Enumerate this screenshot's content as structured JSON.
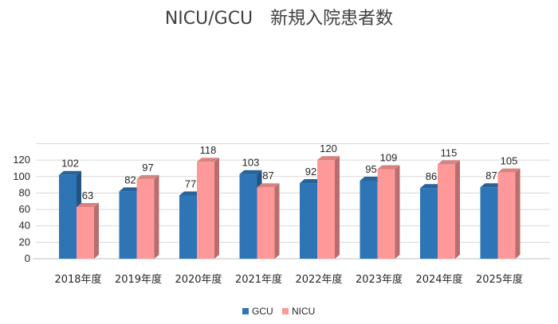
{
  "chart_data": {
    "type": "bar",
    "title": "NICU/GCU　新規入院患者数",
    "categories": [
      "2018年度",
      "2019年度",
      "2020年度",
      "2021年度",
      "2022年度",
      "2023年度",
      "2024年度",
      "2025年度"
    ],
    "series": [
      {
        "name": "GCU",
        "values": [
          102,
          82,
          77,
          103,
          92,
          95,
          86,
          87
        ],
        "color": "#2E75B6"
      },
      {
        "name": "NICU",
        "values": [
          63,
          97,
          118,
          87,
          120,
          109,
          115,
          105
        ],
        "color": "#FF9999"
      }
    ],
    "yticks": [
      "0",
      "20",
      "40",
      "60",
      "80",
      "100",
      "120"
    ],
    "ylim": [
      0,
      140
    ],
    "grid": true,
    "legend": "bottom",
    "three_d": true
  }
}
